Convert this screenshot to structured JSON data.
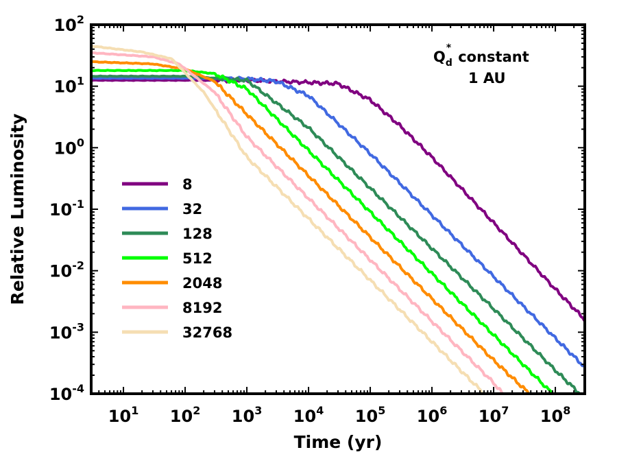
{
  "chart_data": {
    "type": "line",
    "xscale": "log",
    "yscale": "log",
    "xlabel": "Time (yr)",
    "ylabel": "Relative Luminosity",
    "xlim": [
      3,
      300000000
    ],
    "ylim": [
      0.0001,
      100
    ],
    "x_ticks": [
      {
        "base": "10",
        "exp": "1",
        "value": 10
      },
      {
        "base": "10",
        "exp": "2",
        "value": 100
      },
      {
        "base": "10",
        "exp": "3",
        "value": 1000
      },
      {
        "base": "10",
        "exp": "4",
        "value": 10000
      },
      {
        "base": "10",
        "exp": "5",
        "value": 100000
      },
      {
        "base": "10",
        "exp": "6",
        "value": 1000000
      },
      {
        "base": "10",
        "exp": "7",
        "value": 10000000
      },
      {
        "base": "10",
        "exp": "8",
        "value": 100000000
      }
    ],
    "y_ticks": [
      {
        "base": "10",
        "exp": "-4",
        "value": 0.0001
      },
      {
        "base": "10",
        "exp": "-3",
        "value": 0.001
      },
      {
        "base": "10",
        "exp": "-2",
        "value": 0.01
      },
      {
        "base": "10",
        "exp": "-1",
        "value": 0.1
      },
      {
        "base": "10",
        "exp": "0",
        "value": 1
      },
      {
        "base": "10",
        "exp": "1",
        "value": 10
      },
      {
        "base": "10",
        "exp": "2",
        "value": 100
      }
    ],
    "annotation": {
      "q_main": "Q",
      "q_sub": "d",
      "q_sup": "*",
      "line1_rest": "constant",
      "line2": "1 AU"
    },
    "legend_position": "center-left",
    "series": [
      {
        "name": "8",
        "color": "#800080",
        "x": [
          3,
          100,
          1000,
          10000,
          30000,
          100000,
          300000,
          1000000,
          10000000,
          100000000,
          300000000
        ],
        "y": [
          12.5,
          12.5,
          12.5,
          11.5,
          11.0,
          6.0,
          2.3,
          0.7,
          0.06,
          0.005,
          0.0016
        ]
      },
      {
        "name": "32",
        "color": "#4169E1",
        "x": [
          3,
          100,
          1000,
          3000,
          10000,
          100000,
          1000000,
          10000000,
          100000000,
          300000000
        ],
        "y": [
          13.5,
          13.5,
          13.2,
          12.0,
          7.0,
          0.8,
          0.08,
          0.008,
          0.0008,
          0.00027
        ]
      },
      {
        "name": "128",
        "color": "#2E8B57",
        "x": [
          3,
          100,
          1000,
          10000,
          100000,
          1000000,
          10000000,
          100000000,
          250000000
        ],
        "y": [
          14.5,
          14.5,
          12.5,
          2.1,
          0.22,
          0.023,
          0.0024,
          0.00024,
          0.0001
        ]
      },
      {
        "name": "512",
        "color": "#00FF00",
        "x": [
          3,
          100,
          300,
          1000,
          10000,
          100000,
          1000000,
          10000000,
          90000000
        ],
        "y": [
          18.0,
          18.0,
          16.0,
          9.0,
          0.9,
          0.09,
          0.009,
          0.0009,
          0.0001
        ]
      },
      {
        "name": "2048",
        "color": "#FF8C00",
        "x": [
          3,
          30,
          100,
          300,
          1000,
          10000,
          100000,
          1000000,
          10000000,
          38000000
        ],
        "y": [
          25.0,
          23.0,
          19.0,
          12.0,
          3.5,
          0.35,
          0.035,
          0.0035,
          0.00035,
          0.0001
        ]
      },
      {
        "name": "8192",
        "color": "#FFB6C1",
        "x": [
          3,
          30,
          80,
          300,
          1000,
          10000,
          100000,
          1000000,
          10000000,
          14000000
        ],
        "y": [
          35.0,
          30.0,
          23.0,
          8.0,
          1.5,
          0.15,
          0.015,
          0.0015,
          0.00015,
          0.0001
        ]
      },
      {
        "name": "32768",
        "color": "#F5DEB3",
        "x": [
          3,
          20,
          60,
          200,
          1000,
          10000,
          100000,
          1000000,
          7000000
        ],
        "y": [
          45.0,
          36.0,
          28.0,
          8.0,
          0.7,
          0.07,
          0.007,
          0.0007,
          0.0001
        ]
      }
    ]
  }
}
